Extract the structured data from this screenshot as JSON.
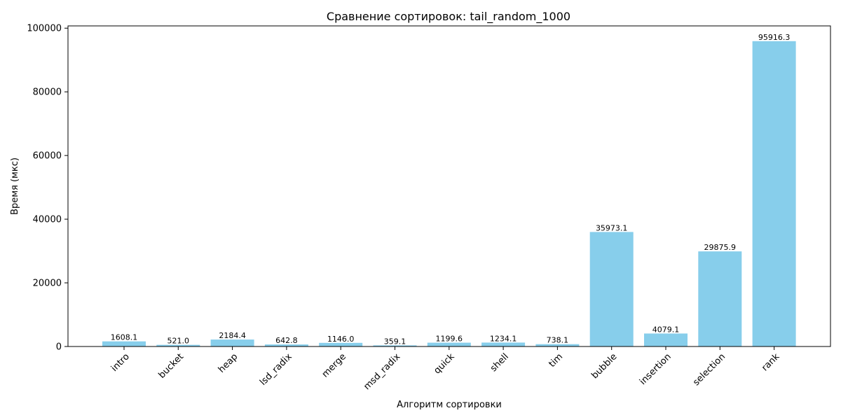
{
  "chart_data": {
    "type": "bar",
    "title": "Сравнение сортировок: tail_random_1000",
    "xlabel": "Алгоритм сортировки",
    "ylabel": "Время (мкс)",
    "categories": [
      "intro",
      "bucket",
      "heap",
      "lsd_radix",
      "merge",
      "msd_radix",
      "quick",
      "shell",
      "tim",
      "bubble",
      "insertion",
      "selection",
      "rank"
    ],
    "values": [
      1608.1,
      521.0,
      2184.4,
      642.8,
      1146.0,
      359.1,
      1199.6,
      1234.1,
      738.1,
      35973.1,
      4079.1,
      29875.9,
      95916.3
    ],
    "value_labels": [
      "1608.1",
      "521.0",
      "2184.4",
      "642.8",
      "1146.0",
      "359.1",
      "1199.6",
      "1234.1",
      "738.1",
      "35973.1",
      "4079.1",
      "29875.9",
      "95916.3"
    ],
    "yticks": [
      0,
      20000,
      40000,
      60000,
      80000,
      100000
    ],
    "ylim": [
      0,
      100712
    ],
    "bar_color": "#87CEEB",
    "grid": false,
    "legend": false
  }
}
